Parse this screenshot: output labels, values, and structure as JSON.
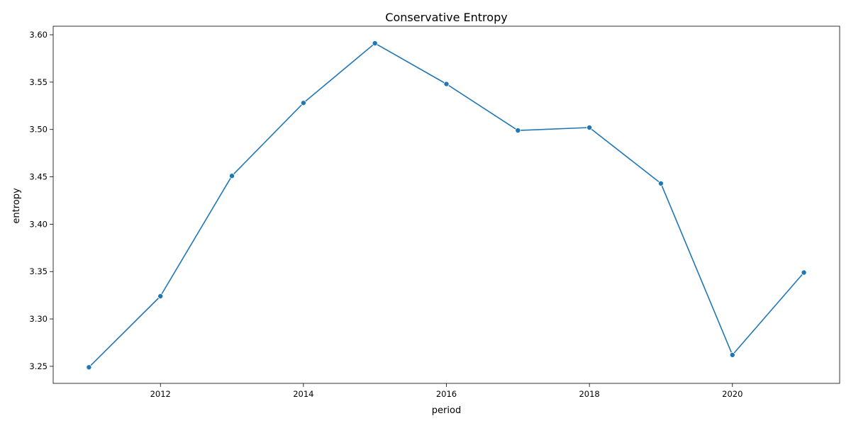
{
  "chart_data": {
    "type": "line",
    "title": "Conservative Entropy",
    "xlabel": "period",
    "ylabel": "entropy",
    "xlim": [
      2010.5,
      2021.5
    ],
    "ylim": [
      3.232,
      3.609
    ],
    "xticks": [
      2012,
      2014,
      2016,
      2018,
      2020
    ],
    "yticks": [
      3.25,
      3.3,
      3.35,
      3.4,
      3.45,
      3.5,
      3.55,
      3.6
    ],
    "grid": false,
    "legend": "none",
    "color": "#1f77b4",
    "markers": true,
    "series": [
      {
        "x": [
          2011,
          2012,
          2013,
          2014,
          2015,
          2016,
          2017,
          2018,
          2019,
          2020,
          2021
        ],
        "values": [
          3.249,
          3.324,
          3.451,
          3.528,
          3.591,
          3.548,
          3.499,
          3.502,
          3.443,
          3.262,
          3.349
        ]
      }
    ]
  }
}
